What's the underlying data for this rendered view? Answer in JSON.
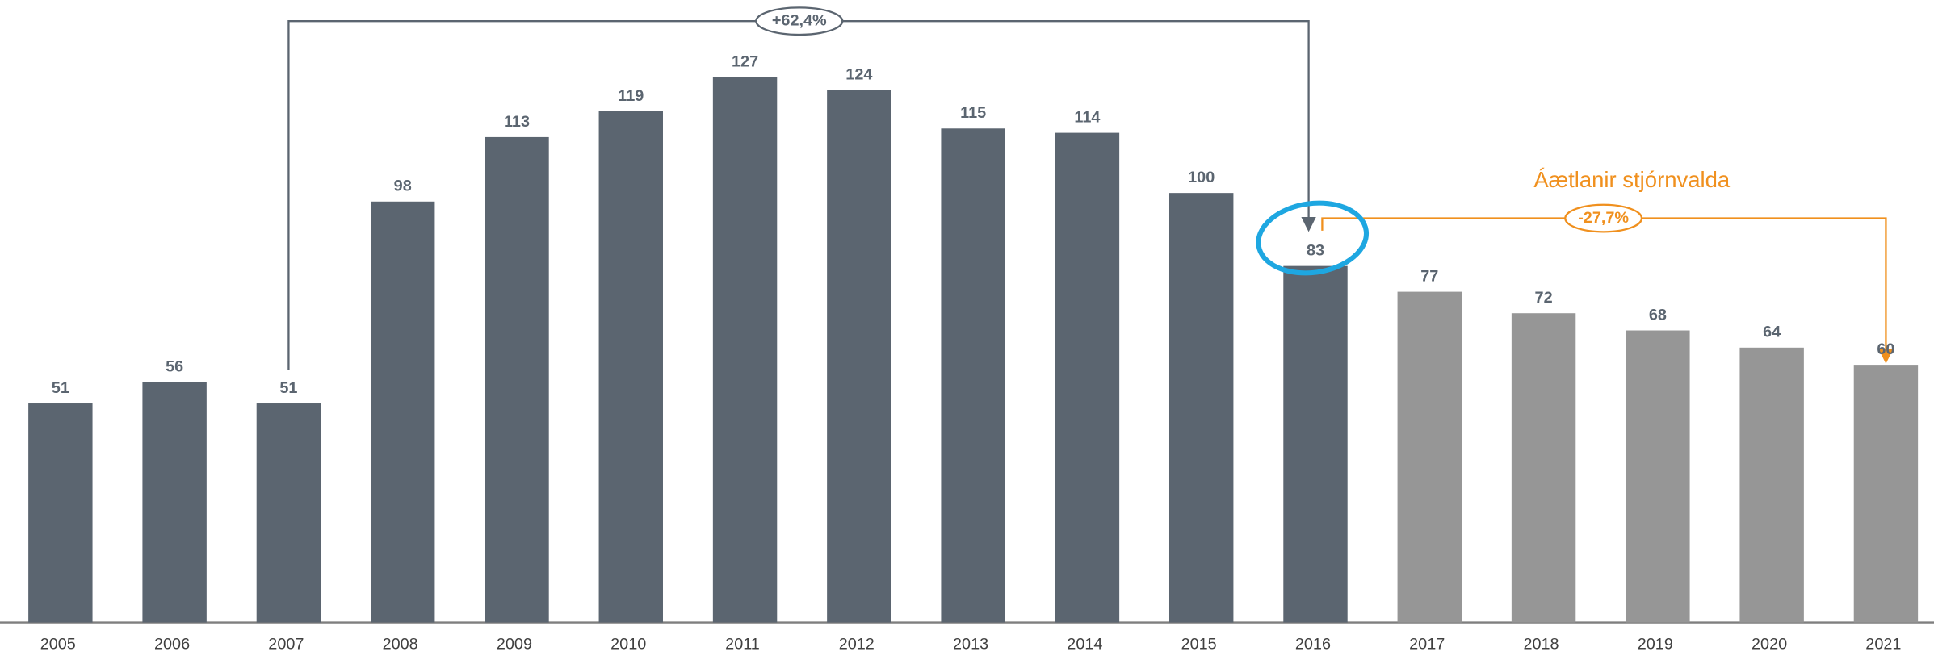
{
  "chart_data": {
    "type": "bar",
    "categories": [
      "2005",
      "2006",
      "2007",
      "2008",
      "2009",
      "2010",
      "2011",
      "2012",
      "2013",
      "2014",
      "2015",
      "2016",
      "2017",
      "2018",
      "2019",
      "2020",
      "2021"
    ],
    "values": [
      51,
      56,
      51,
      98,
      113,
      119,
      127,
      124,
      115,
      114,
      100,
      83,
      77,
      72,
      68,
      64,
      60
    ],
    "colors": [
      "#5b6570",
      "#5b6570",
      "#5b6570",
      "#5b6570",
      "#5b6570",
      "#5b6570",
      "#5b6570",
      "#5b6570",
      "#5b6570",
      "#5b6570",
      "#5b6570",
      "#5b6570",
      "#969696",
      "#969696",
      "#969696",
      "#969696",
      "#969696"
    ],
    "ylim": [
      0,
      140
    ],
    "annotations": [
      "+62,4%",
      "-27,7%"
    ],
    "forecast_label": "Áætlanir stjórnvalda"
  }
}
